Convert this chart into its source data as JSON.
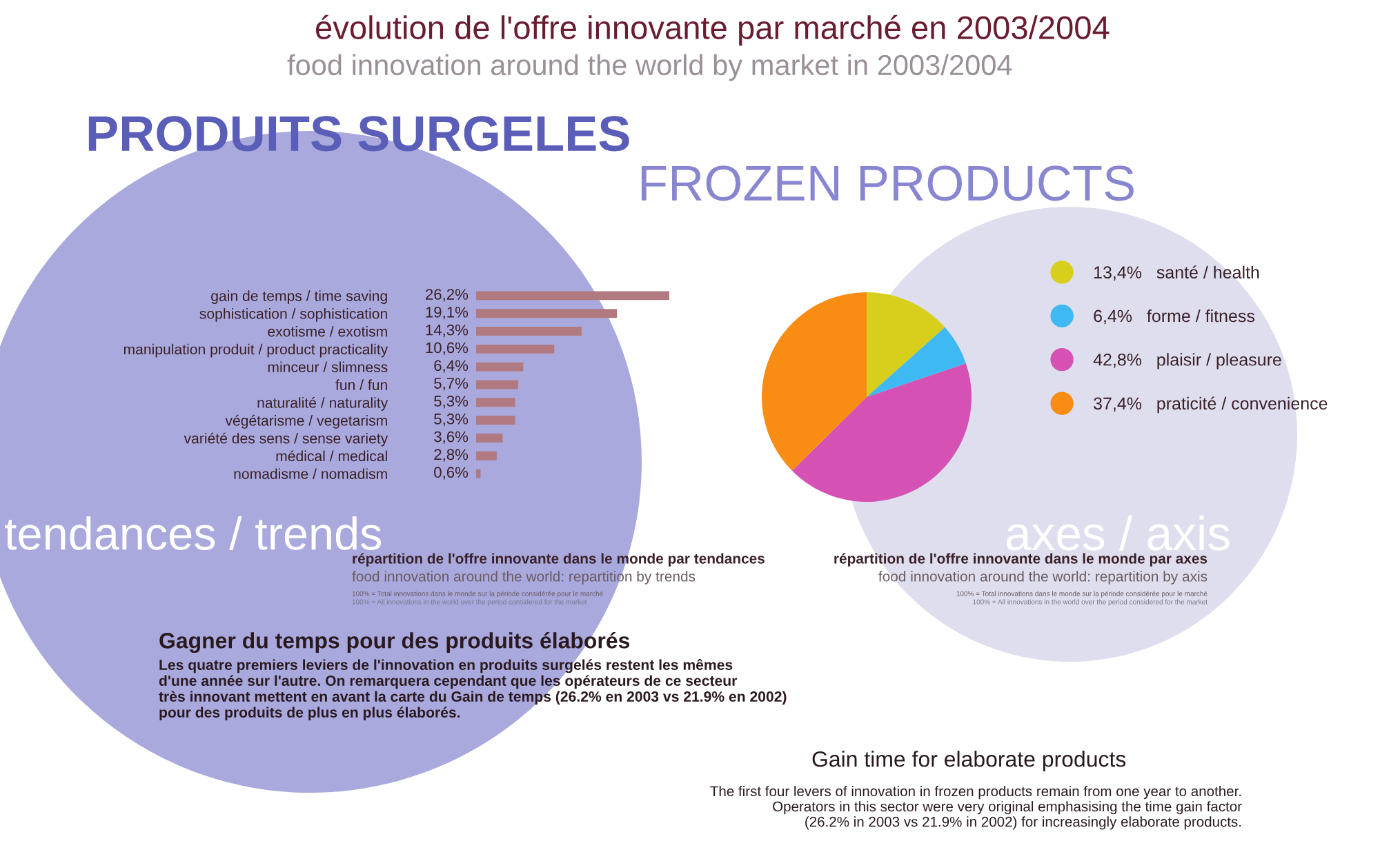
{
  "chart_data": [
    {
      "type": "bar",
      "orientation": "horizontal",
      "title": "évolution de l'offre innovante par marché en 2003/2004",
      "subtitle": "food innovation around the world by market in 2003/2004",
      "categories": [
        "gain de temps / time saving",
        "sophistication / sophistication",
        "exotisme / exotism",
        "manipulation produit / product practicality",
        "minceur / slimness",
        "fun / fun",
        "naturalité / naturality",
        "végétarisme / vegetarism",
        "variété des sens / sense variety",
        "médical / medical",
        "nomadisme / nomadism"
      ],
      "values": [
        26.2,
        19.1,
        14.3,
        10.6,
        6.4,
        5.7,
        5.3,
        5.3,
        3.6,
        2.8,
        0.6
      ],
      "value_labels": [
        "26,2%",
        "19,1%",
        "14,3%",
        "10,6%",
        "6,4%",
        "5,7%",
        "5,3%",
        "5,3%",
        "3,6%",
        "2,8%",
        "0,6%"
      ],
      "color": "#b07a80",
      "tick_labels": "y",
      "annotations": [
        "PRODUITS SURGELES",
        "FROZEN PRODUCTS",
        "tendances / trends",
        "répartition de l'offre innovante dans le monde par tendances",
        "food innovation around the world: repartition by trends",
        "100% = Total innovations dans le monde sur la période considérée pour le marché",
        "100% = All innovations in the world over the period considered for the market",
        "Gagner du temps pour des produits élaborés",
        "Les quatre premiers leviers de l'innovation en produits surgelés restent les mêmes\nd'une année sur l'autre. On remarquera cependant que les opérateurs de ce secteur\ntrès innovant mettent en avant la carte du Gain de temps (26.2% en 2003 vs 21.9% en 2002)\npour des produits de plus en plus élaborés.",
        "Gain time for elaborate products",
        "The first four levers of innovation in frozen products remain from one year to another.\nOperators in this sector were very original emphasising the time gain factor\n(26.2% in 2003 vs 21.9% in 2002) for increasingly elaborate products."
      ]
    },
    {
      "type": "pie",
      "categories": [
        "santé / health",
        "forme / fitness",
        "plaisir / pleasure",
        "praticité / convenience"
      ],
      "values": [
        13.4,
        6.4,
        42.8,
        37.4
      ],
      "value_labels": [
        "13,4%",
        "6,4%",
        "42,8%",
        "37,4%"
      ],
      "colors": [
        "#d8cf1c",
        "#3fb9f2",
        "#d552b4",
        "#f98c12"
      ],
      "legend": "right",
      "annotations": [
        "axes / axis",
        "répartition de l'offre innovante dans le monde par axes",
        "food innovation around the world: repartition by axis",
        "100% = Total innovations dans le monde sur la période considérée pour le marché",
        "100% = All innovations in the world over the period considered for the market"
      ]
    }
  ]
}
